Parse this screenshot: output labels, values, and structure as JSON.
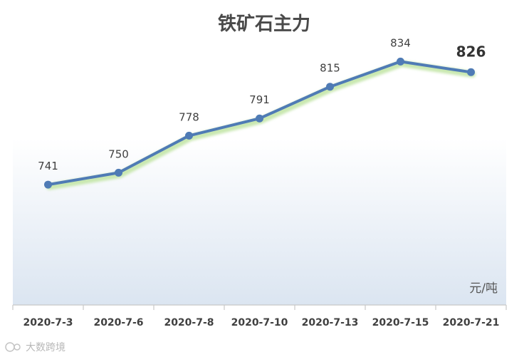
{
  "colors": {
    "line": "#4f7bb5",
    "glow": "#c9e8b0",
    "gradient_top": "#ffffff",
    "gradient_bottom": "#dbe5f1",
    "axis": "#c8c8c8"
  },
  "chart_data": {
    "type": "line",
    "title": "铁矿石主力",
    "categories": [
      "2020-7-3",
      "2020-7-6",
      "2020-7-8",
      "2020-7-10",
      "2020-7-13",
      "2020-7-15",
      "2020-7-21"
    ],
    "series": [
      {
        "values": [
          741,
          750,
          778,
          791,
          815,
          834,
          826
        ]
      }
    ],
    "data_labels": [
      "741",
      "750",
      "778",
      "791",
      "815",
      "834",
      "826"
    ],
    "emphasized_label_index": 6,
    "unit": "元/吨",
    "ylim": [
      650,
      845
    ],
    "grid": false,
    "legend": "none"
  },
  "watermark": "大数跨境"
}
